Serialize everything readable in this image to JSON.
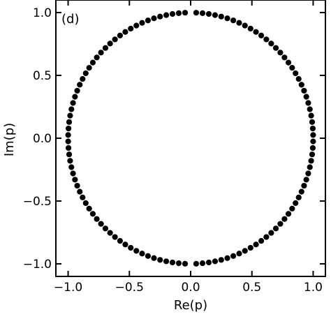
{
  "chart_data": {
    "type": "scatter",
    "title": "",
    "panel_label": "(d)",
    "xlabel": "Re(p)",
    "ylabel": "Im(p)",
    "xlim": [
      -1.1,
      1.1
    ],
    "ylim": [
      -1.1,
      1.1
    ],
    "xticks": [
      -1.0,
      -0.5,
      0.0,
      0.5,
      1.0
    ],
    "yticks": [
      -1.0,
      -0.5,
      0.0,
      0.5,
      1.0
    ],
    "xtick_labels": [
      "−1.0",
      "−0.5",
      "0.0",
      "0.5",
      "1.0"
    ],
    "ytick_labels": [
      "−1.0",
      "−0.5",
      "0.0",
      "0.5",
      "1.0"
    ],
    "grid": false,
    "marker_color": "#000000",
    "series": [
      {
        "description_free": true,
        "points": {
          "count": 120,
          "radius": 1.0,
          "angle_start_deg": 88,
          "angle_end_deg": -268
        }
      }
    ]
  }
}
